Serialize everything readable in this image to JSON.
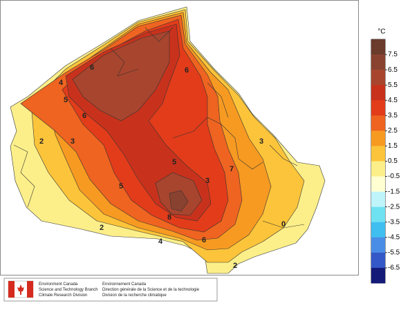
{
  "map": {
    "legend": {
      "unit": "°C",
      "labels": [
        "7.5",
        "6.5",
        "5.5",
        "4.5",
        "3.5",
        "2.5",
        "1.5",
        "0.5",
        "-0.5",
        "-1.5",
        "-2.5",
        "-3.5",
        "-4.5",
        "-5.5",
        "-6.5"
      ],
      "colors": [
        "#6b3b2c",
        "#8a4230",
        "#a8452e",
        "#c8321c",
        "#e23c1a",
        "#ee6420",
        "#f79a22",
        "#fcc43a",
        "#fcef8a",
        "#ffffd2",
        "#bff4fa",
        "#6fe2f2",
        "#3fbff0",
        "#4a8de6",
        "#3458c8",
        "#141a78"
      ]
    },
    "contour_labels": [
      "6",
      "4",
      "6",
      "5",
      "6",
      "3",
      "2",
      "5",
      "5",
      "7",
      "3",
      "8",
      "2",
      "4",
      "6",
      "2",
      "0",
      "3"
    ]
  },
  "footer": {
    "en": [
      "Environment Canada",
      "Science and Technology Branch",
      "Climate Research Division"
    ],
    "fr": [
      "Environnement Canada",
      "Direction générale de la Science et de la technologie",
      "Division de la recherche climatique"
    ]
  }
}
